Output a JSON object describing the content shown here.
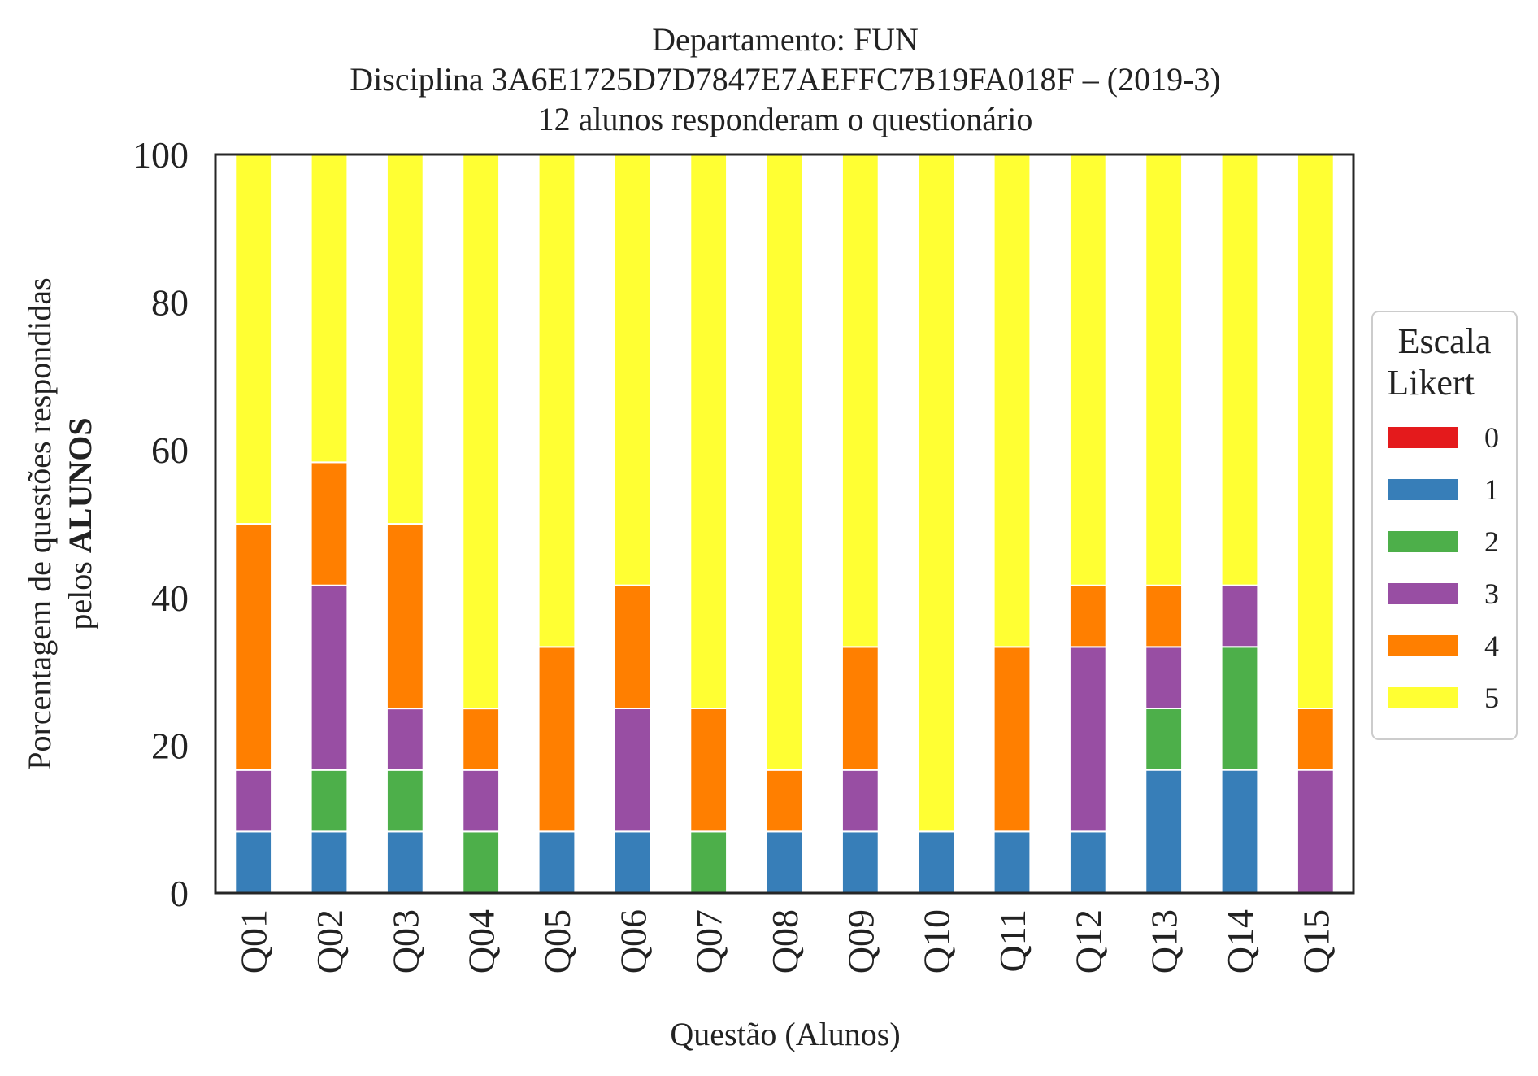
{
  "chart_data": {
    "type": "bar",
    "stacked": true,
    "title_lines": [
      "Departamento: FUN",
      "Disciplina 3A6E1725D7D7847E7AEFFC7B19FA018F – (2019-3)",
      "12 alunos responderam o questionário"
    ],
    "xlabel": "Questão (Alunos)",
    "ylabel_line1": "Porcentagem de questões respondidas",
    "ylabel_line2_prefix": "pelos ",
    "ylabel_line2_bold": "ALUNOS",
    "ylim": [
      0,
      100
    ],
    "yticks": [
      "0",
      "20",
      "40",
      "60",
      "80",
      "100"
    ],
    "grid": false,
    "legend": {
      "title_lines": [
        "Escala",
        "Likert"
      ],
      "placement": "right-center"
    },
    "categories": [
      "Q01",
      "Q02",
      "Q03",
      "Q04",
      "Q05",
      "Q06",
      "Q07",
      "Q08",
      "Q09",
      "Q10",
      "Q11",
      "Q12",
      "Q13",
      "Q14",
      "Q15"
    ],
    "series": [
      {
        "name": "0",
        "color": "#e41a1c",
        "values": [
          0,
          0,
          0,
          0,
          0,
          0,
          0,
          0,
          0,
          0,
          0,
          0,
          0,
          0,
          0
        ]
      },
      {
        "name": "1",
        "color": "#377eb8",
        "values": [
          8.33,
          8.33,
          8.33,
          0,
          8.33,
          8.33,
          0,
          8.33,
          8.33,
          8.33,
          8.33,
          8.33,
          16.67,
          16.67,
          0
        ]
      },
      {
        "name": "2",
        "color": "#4daf4a",
        "values": [
          0,
          8.33,
          8.33,
          8.33,
          0,
          0,
          8.33,
          0,
          0,
          0,
          0,
          0,
          8.33,
          16.67,
          0
        ]
      },
      {
        "name": "3",
        "color": "#984ea3",
        "values": [
          8.33,
          25,
          8.33,
          8.33,
          0,
          16.67,
          0,
          0,
          8.33,
          0,
          0,
          25,
          8.33,
          8.33,
          16.67
        ]
      },
      {
        "name": "4",
        "color": "#ff7f00",
        "values": [
          33.33,
          16.67,
          25,
          8.33,
          25,
          16.67,
          16.67,
          8.33,
          16.67,
          0,
          25,
          8.33,
          8.33,
          0,
          8.33
        ]
      },
      {
        "name": "5",
        "color": "#ffff33",
        "values": [
          50,
          41.67,
          50,
          75,
          66.67,
          58.33,
          75,
          83.33,
          66.67,
          91.67,
          66.67,
          58.33,
          58.33,
          58.33,
          75
        ]
      }
    ]
  }
}
